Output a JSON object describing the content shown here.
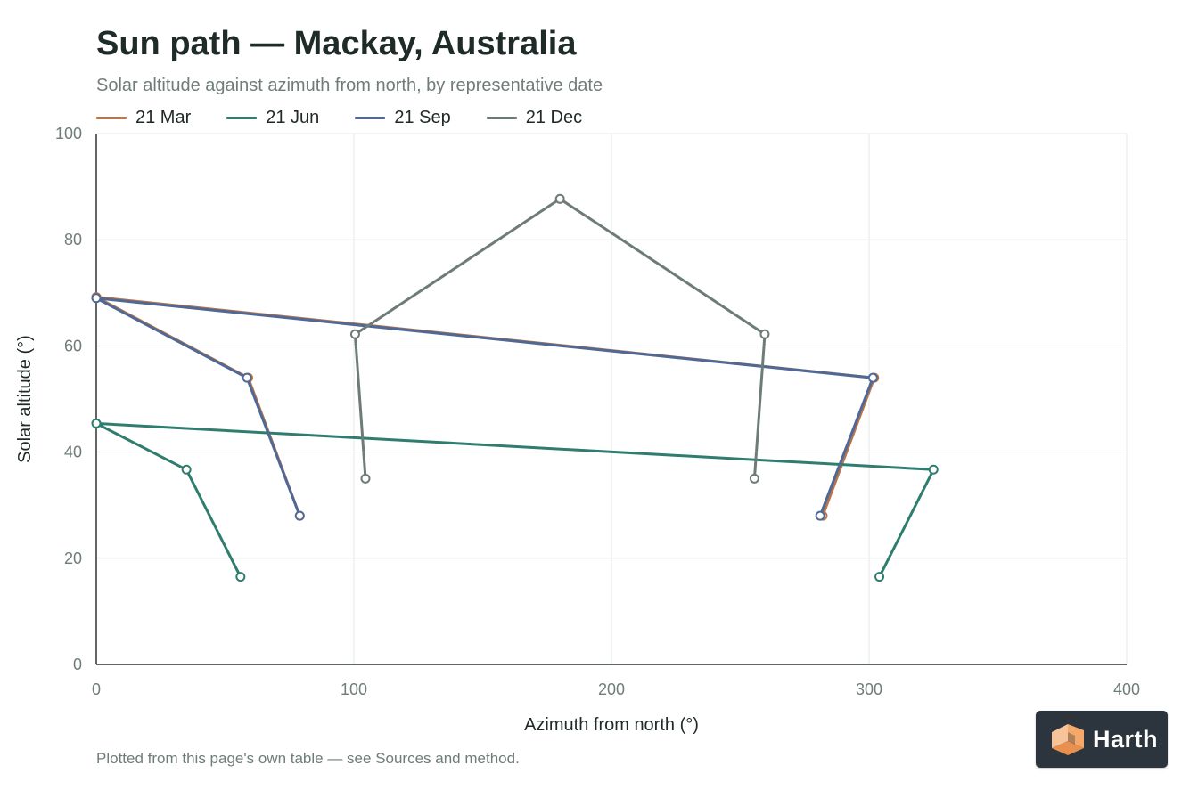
{
  "header": {
    "title": "Sun path — Mackay, Australia",
    "subtitle": "Solar altitude against azimuth from north, by representative date"
  },
  "footer": {
    "note": "Plotted from this page's own table — see Sources and method."
  },
  "logo": {
    "text": "Harth",
    "icon": "cube-icon",
    "accent": "#f4a96b",
    "background": "#2c353d"
  },
  "colors": {
    "grid": "#e6e8e7",
    "axis": "#2b3431"
  },
  "chart_data": {
    "type": "line",
    "title": "Sun path — Mackay, Australia",
    "subtitle": "Solar altitude against azimuth from north, by representative date",
    "xlabel": "Azimuth from north (°)",
    "ylabel": "Solar altitude (°)",
    "xlim": [
      0,
      400
    ],
    "ylim": [
      0,
      100
    ],
    "xticks": [
      0,
      100,
      200,
      300,
      400
    ],
    "yticks": [
      0,
      20,
      40,
      60,
      80,
      100
    ],
    "grid": true,
    "legend": "top-left",
    "series": [
      {
        "name": "21 Mar",
        "color": "#b8744a",
        "points": [
          [
            79,
            28
          ],
          [
            59,
            54
          ],
          [
            0,
            69.2
          ],
          [
            302,
            54
          ],
          [
            282,
            28
          ]
        ]
      },
      {
        "name": "21 Jun",
        "color": "#2e7d6e",
        "points": [
          [
            56,
            16.5
          ],
          [
            35,
            36.7
          ],
          [
            0,
            45.4
          ],
          [
            325,
            36.7
          ],
          [
            304,
            16.5
          ]
        ]
      },
      {
        "name": "21 Sep",
        "color": "#4f6896",
        "points": [
          [
            79,
            28
          ],
          [
            58.5,
            54
          ],
          [
            0,
            69
          ],
          [
            301.5,
            54
          ],
          [
            281,
            28
          ]
        ]
      },
      {
        "name": "21 Dec",
        "color": "#6e7c77",
        "points": [
          [
            104.5,
            35
          ],
          [
            100.5,
            62.2
          ],
          [
            180,
            87.7
          ],
          [
            259.5,
            62.2
          ],
          [
            255.5,
            35
          ]
        ]
      }
    ]
  }
}
